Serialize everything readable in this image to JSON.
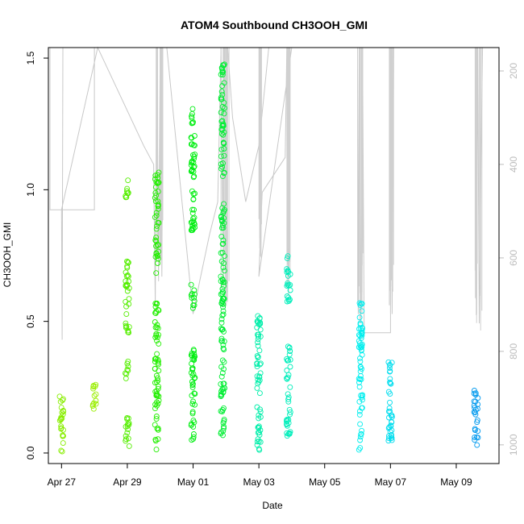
{
  "chart_data": {
    "type": "scatter",
    "title": "ATOM4 Southbound CH3OOH_GMI",
    "xlabel": "Date",
    "ylabel": "CH3OOH_GMI",
    "xlim_days": [
      26.6,
      40.3
    ],
    "ylim": [
      -0.04,
      1.54
    ],
    "x_ticks": [
      {
        "value": 27,
        "label": "Apr 27"
      },
      {
        "value": 29,
        "label": "Apr 29"
      },
      {
        "value": 31,
        "label": "May 01"
      },
      {
        "value": 33,
        "label": "May 03"
      },
      {
        "value": 35,
        "label": "May 05"
      },
      {
        "value": 37,
        "label": "May 07"
      },
      {
        "value": 39,
        "label": "May 09"
      }
    ],
    "y_ticks": [
      {
        "value": 0.0,
        "label": "0.0"
      },
      {
        "value": 0.5,
        "label": "0.5"
      },
      {
        "value": 1.0,
        "label": "1.0"
      },
      {
        "value": 1.5,
        "label": "1.5"
      }
    ],
    "pressure_axis": {
      "range_top_bottom": [
        150,
        1040
      ],
      "ticks": [
        {
          "value": 200,
          "label": "200"
        },
        {
          "value": 400,
          "label": "400"
        },
        {
          "value": 600,
          "label": "600"
        },
        {
          "value": 800,
          "label": "800"
        },
        {
          "value": 1000,
          "label": "1000"
        }
      ]
    },
    "clusters": [
      {
        "x": 27.0,
        "color": "#88ee00",
        "ranges": [
          [
            0.0,
            0.22
          ]
        ]
      },
      {
        "x": 28.0,
        "color": "#99ee00",
        "ranges": [
          [
            0.16,
            0.28
          ]
        ]
      },
      {
        "x": 29.0,
        "color": "#55ee00",
        "ranges": [
          [
            0.02,
            0.16
          ],
          [
            0.28,
            0.35
          ],
          [
            0.45,
            0.73
          ],
          [
            0.97,
            1.05
          ]
        ]
      },
      {
        "x": 29.9,
        "color": "#22ee00",
        "ranges": [
          [
            0.01,
            0.59
          ],
          [
            0.68,
            1.07
          ]
        ]
      },
      {
        "x": 31.0,
        "color": "#00ee11",
        "ranges": [
          [
            0.02,
            0.4
          ],
          [
            0.55,
            0.65
          ],
          [
            0.84,
            1.33
          ]
        ]
      },
      {
        "x": 31.9,
        "color": "#00ee33",
        "ranges": [
          [
            0.06,
            0.95
          ],
          [
            1.05,
            1.49
          ]
        ]
      },
      {
        "x": 33.0,
        "color": "#00eeaa",
        "ranges": [
          [
            0.0,
            0.54
          ]
        ]
      },
      {
        "x": 33.9,
        "color": "#00eebb",
        "ranges": [
          [
            0.06,
            0.41
          ],
          [
            0.56,
            0.75
          ]
        ]
      },
      {
        "x": 36.1,
        "color": "#00eeee",
        "ranges": [
          [
            0.01,
            0.57
          ]
        ]
      },
      {
        "x": 37.0,
        "color": "#00ddee",
        "ranges": [
          [
            0.01,
            0.35
          ]
        ]
      },
      {
        "x": 39.6,
        "color": "#0099ee",
        "ranges": [
          [
            0.02,
            0.25
          ]
        ]
      }
    ]
  }
}
